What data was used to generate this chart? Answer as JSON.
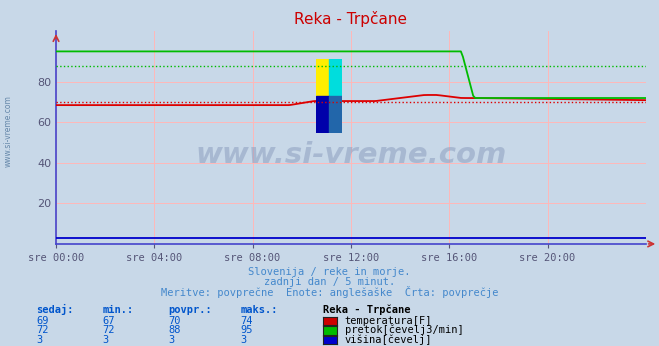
{
  "title": "Reka - Trpčane",
  "bg_color": "#c8d8e8",
  "plot_bg_color": "#c8d8e8",
  "grid_color": "#ffb8b8",
  "text_color": "#4488cc",
  "subtitle_lines": [
    "Slovenija / reke in morje.",
    "zadnji dan / 5 minut.",
    "Meritve: povprečne  Enote: anglešaške  Črta: povprečje"
  ],
  "xlabel_ticks": [
    "sre 00:00",
    "sre 04:00",
    "sre 08:00",
    "sre 12:00",
    "sre 16:00",
    "sre 20:00"
  ],
  "ylim": [
    0,
    105
  ],
  "yticks": [
    20,
    40,
    60,
    80
  ],
  "temp_color": "#dd0000",
  "flow_color": "#00bb00",
  "height_color": "#0000cc",
  "temp_avg": 70,
  "flow_avg": 88,
  "legend_header": "Reka - Trpčane",
  "legend_rows": [
    {
      "sedaj": 69,
      "min": 67,
      "povpr": 70,
      "maks": 74,
      "label": "temperatura[F]",
      "color": "#cc0000"
    },
    {
      "sedaj": 72,
      "min": 72,
      "povpr": 88,
      "maks": 95,
      "label": "pretok[čevelj3/min]",
      "color": "#00bb00"
    },
    {
      "sedaj": 3,
      "min": 3,
      "povpr": 3,
      "maks": 3,
      "label": "višina[čevelj]",
      "color": "#0000cc"
    }
  ],
  "watermark": "www.si-vreme.com",
  "axis_color": "#4444cc",
  "spine_color": "#4444cc"
}
